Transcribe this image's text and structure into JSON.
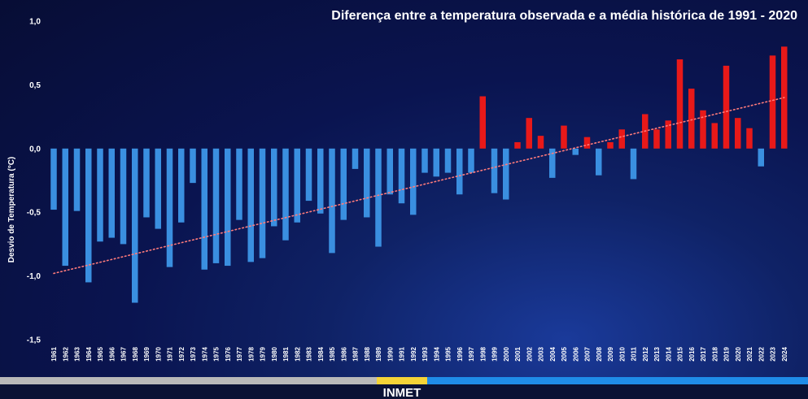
{
  "chart_data": {
    "type": "bar",
    "title": "Diferença entre a temperatura observada e a média histórica de 1991 - 2020",
    "ylabel": "Desvio de Temperatura (°C)",
    "xlabel": "",
    "ylim": [
      -1.5,
      1.0
    ],
    "yticks": [
      "1,0",
      "0,5",
      "0,0",
      "-0,5",
      "-1,0",
      "-1,5"
    ],
    "ytick_values": [
      1.0,
      0.5,
      0.0,
      -0.5,
      -1.0,
      -1.5
    ],
    "trendline": {
      "style": "dotted",
      "start": -0.98,
      "end": 0.4
    },
    "colors": {
      "negative": "#3a8fe0",
      "positive": "#e81919",
      "trend": "#ff7b7b"
    },
    "categories": [
      "1961",
      "1962",
      "1963",
      "1964",
      "1965",
      "1966",
      "1967",
      "1968",
      "1969",
      "1970",
      "1971",
      "1972",
      "1973",
      "1974",
      "1975",
      "1976",
      "1977",
      "1978",
      "1979",
      "1980",
      "1981",
      "1982",
      "1983",
      "1984",
      "1985",
      "1986",
      "1987",
      "1988",
      "1989",
      "1990",
      "1991",
      "1992",
      "1993",
      "1994",
      "1995",
      "1996",
      "1997",
      "1998",
      "1999",
      "2000",
      "2001",
      "2002",
      "2003",
      "2004",
      "2005",
      "2006",
      "2007",
      "2008",
      "2009",
      "2010",
      "2011",
      "2012",
      "2013",
      "2014",
      "2015",
      "2016",
      "2017",
      "2018",
      "2019",
      "2020",
      "2021",
      "2022",
      "2023",
      "2024"
    ],
    "values": [
      -0.48,
      -0.92,
      -0.49,
      -1.05,
      -0.73,
      -0.7,
      -0.75,
      -1.21,
      -0.54,
      -0.63,
      -0.93,
      -0.58,
      -0.27,
      -0.95,
      -0.9,
      -0.92,
      -0.56,
      -0.89,
      -0.86,
      -0.61,
      -0.72,
      -0.58,
      -0.41,
      -0.51,
      -0.82,
      -0.56,
      -0.16,
      -0.54,
      -0.77,
      -0.36,
      -0.43,
      -0.52,
      -0.19,
      -0.22,
      -0.19,
      -0.36,
      -0.19,
      0.41,
      -0.35,
      -0.4,
      0.05,
      0.24,
      0.1,
      -0.23,
      0.18,
      -0.05,
      0.09,
      -0.21,
      0.05,
      0.15,
      -0.24,
      0.27,
      0.15,
      0.22,
      0.7,
      0.47,
      0.3,
      0.2,
      0.65,
      0.24,
      0.16,
      -0.14,
      0.73,
      0.8
    ]
  },
  "footer": {
    "label": "INMET",
    "bar_colors": [
      "#b9b9b9",
      "#f5d437",
      "#1f8ce8"
    ]
  }
}
